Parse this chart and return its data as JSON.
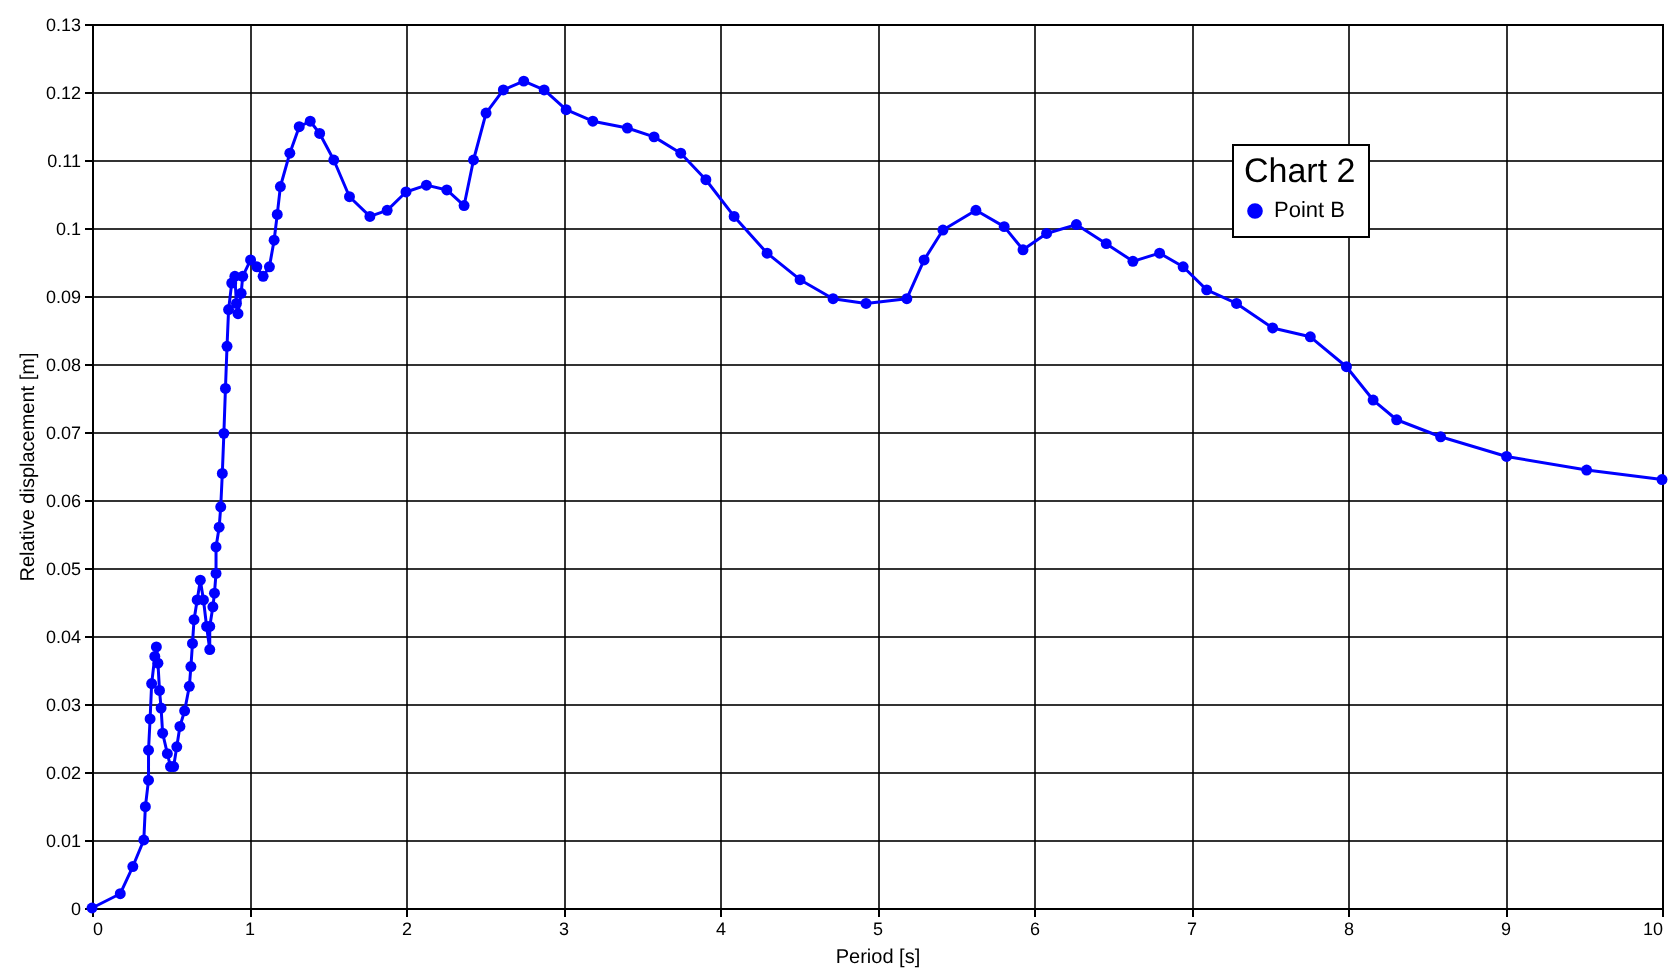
{
  "chart_data": {
    "type": "line",
    "xlabel": "Period [s]",
    "ylabel": "Relative displacement [m]",
    "legend_title": "Chart 2",
    "xlim": [
      0,
      10
    ],
    "xticks": [
      0,
      1,
      2,
      3,
      4,
      5,
      6,
      7,
      8,
      9,
      10
    ],
    "ylim": [
      0,
      0.13
    ],
    "yticks": [
      0,
      0.01,
      0.02,
      0.03,
      0.04,
      0.05,
      0.06,
      0.07,
      0.08,
      0.09,
      0.1,
      0.11,
      0.12,
      0.13
    ],
    "grid": true,
    "legend": "top right",
    "marker": "circle",
    "line_style": "solid",
    "series": [
      {
        "name": "Point B",
        "color": "#0000ff",
        "x": [
          0,
          0.18,
          0.26,
          0.33,
          0.34,
          0.36,
          0.36,
          0.37,
          0.38,
          0.4,
          0.41,
          0.42,
          0.43,
          0.44,
          0.45,
          0.48,
          0.5,
          0.52,
          0.54,
          0.56,
          0.59,
          0.62,
          0.63,
          0.64,
          0.65,
          0.67,
          0.69,
          0.71,
          0.73,
          0.75,
          0.75,
          0.77,
          0.78,
          0.79,
          0.79,
          0.81,
          0.82,
          0.83,
          0.84,
          0.85,
          0.86,
          0.87,
          0.89,
          0.91,
          0.92,
          0.93,
          0.95,
          0.96,
          1.01,
          1.05,
          1.09,
          1.13,
          1.16,
          1.18,
          1.2,
          1.26,
          1.32,
          1.39,
          1.45,
          1.54,
          1.64,
          1.77,
          1.88,
          2.0,
          2.13,
          2.26,
          2.37,
          2.43,
          2.51,
          2.62,
          2.75,
          2.88,
          3.02,
          3.19,
          3.41,
          3.58,
          3.75,
          3.91,
          4.09,
          4.3,
          4.51,
          4.72,
          4.93,
          5.19,
          5.3,
          5.42,
          5.63,
          5.81,
          5.93,
          6.08,
          6.27,
          6.46,
          6.63,
          6.8,
          6.95,
          7.1,
          7.29,
          7.52,
          7.76,
          7.99,
          8.16,
          8.31,
          8.59,
          9.01,
          9.52,
          10
        ],
        "values": [
          0,
          0.0021,
          0.0061,
          0.01,
          0.0149,
          0.0188,
          0.0232,
          0.0278,
          0.033,
          0.037,
          0.0384,
          0.036,
          0.032,
          0.0294,
          0.0257,
          0.0227,
          0.0208,
          0.0208,
          0.0237,
          0.0267,
          0.029,
          0.0326,
          0.0355,
          0.0389,
          0.0424,
          0.0453,
          0.0482,
          0.0453,
          0.0414,
          0.038,
          0.0414,
          0.0443,
          0.0463,
          0.0492,
          0.0531,
          0.056,
          0.059,
          0.0639,
          0.0698,
          0.0764,
          0.0826,
          0.088,
          0.0919,
          0.0929,
          0.0889,
          0.0874,
          0.0904,
          0.0929,
          0.0953,
          0.0943,
          0.0929,
          0.0943,
          0.0982,
          0.102,
          0.1061,
          0.111,
          0.1149,
          0.1157,
          0.1139,
          0.11,
          0.1046,
          0.1017,
          0.1026,
          0.1053,
          0.1063,
          0.1056,
          0.1033,
          0.11,
          0.1169,
          0.1203,
          0.1216,
          0.1203,
          0.1174,
          0.1157,
          0.1147,
          0.1134,
          0.111,
          0.1071,
          0.1017,
          0.0963,
          0.0924,
          0.0896,
          0.0889,
          0.0896,
          0.0953,
          0.0997,
          0.1026,
          0.1002,
          0.0968,
          0.0992,
          0.1005,
          0.0977,
          0.0951,
          0.0963,
          0.0943,
          0.0909,
          0.0889,
          0.0853,
          0.084,
          0.0796,
          0.0747,
          0.0718,
          0.0693,
          0.0664,
          0.0644,
          0.063
        ]
      }
    ]
  }
}
